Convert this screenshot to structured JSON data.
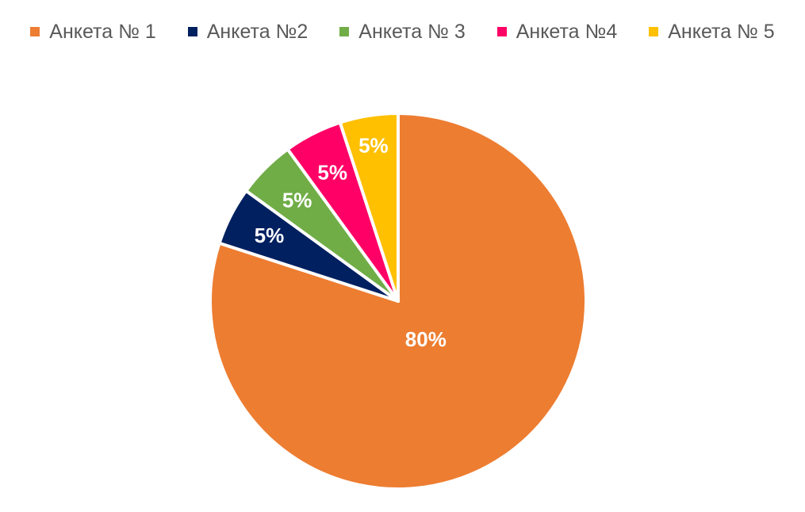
{
  "chart_data": {
    "type": "pie",
    "title": "",
    "legend_position": "top",
    "slices": [
      {
        "label": "Анкета № 1",
        "value": 80,
        "display": "80%",
        "color": "#ED7D31"
      },
      {
        "label": "Анкета №2",
        "value": 5,
        "display": "5%",
        "color": "#002060"
      },
      {
        "label": "Анкета № 3",
        "value": 5,
        "display": "5%",
        "color": "#70AD47"
      },
      {
        "label": "Анкета №4",
        "value": 5,
        "display": "5%",
        "color": "#FF0066"
      },
      {
        "label": "Анкета № 5",
        "value": 5,
        "display": "5%",
        "color": "#FFC000"
      }
    ]
  }
}
